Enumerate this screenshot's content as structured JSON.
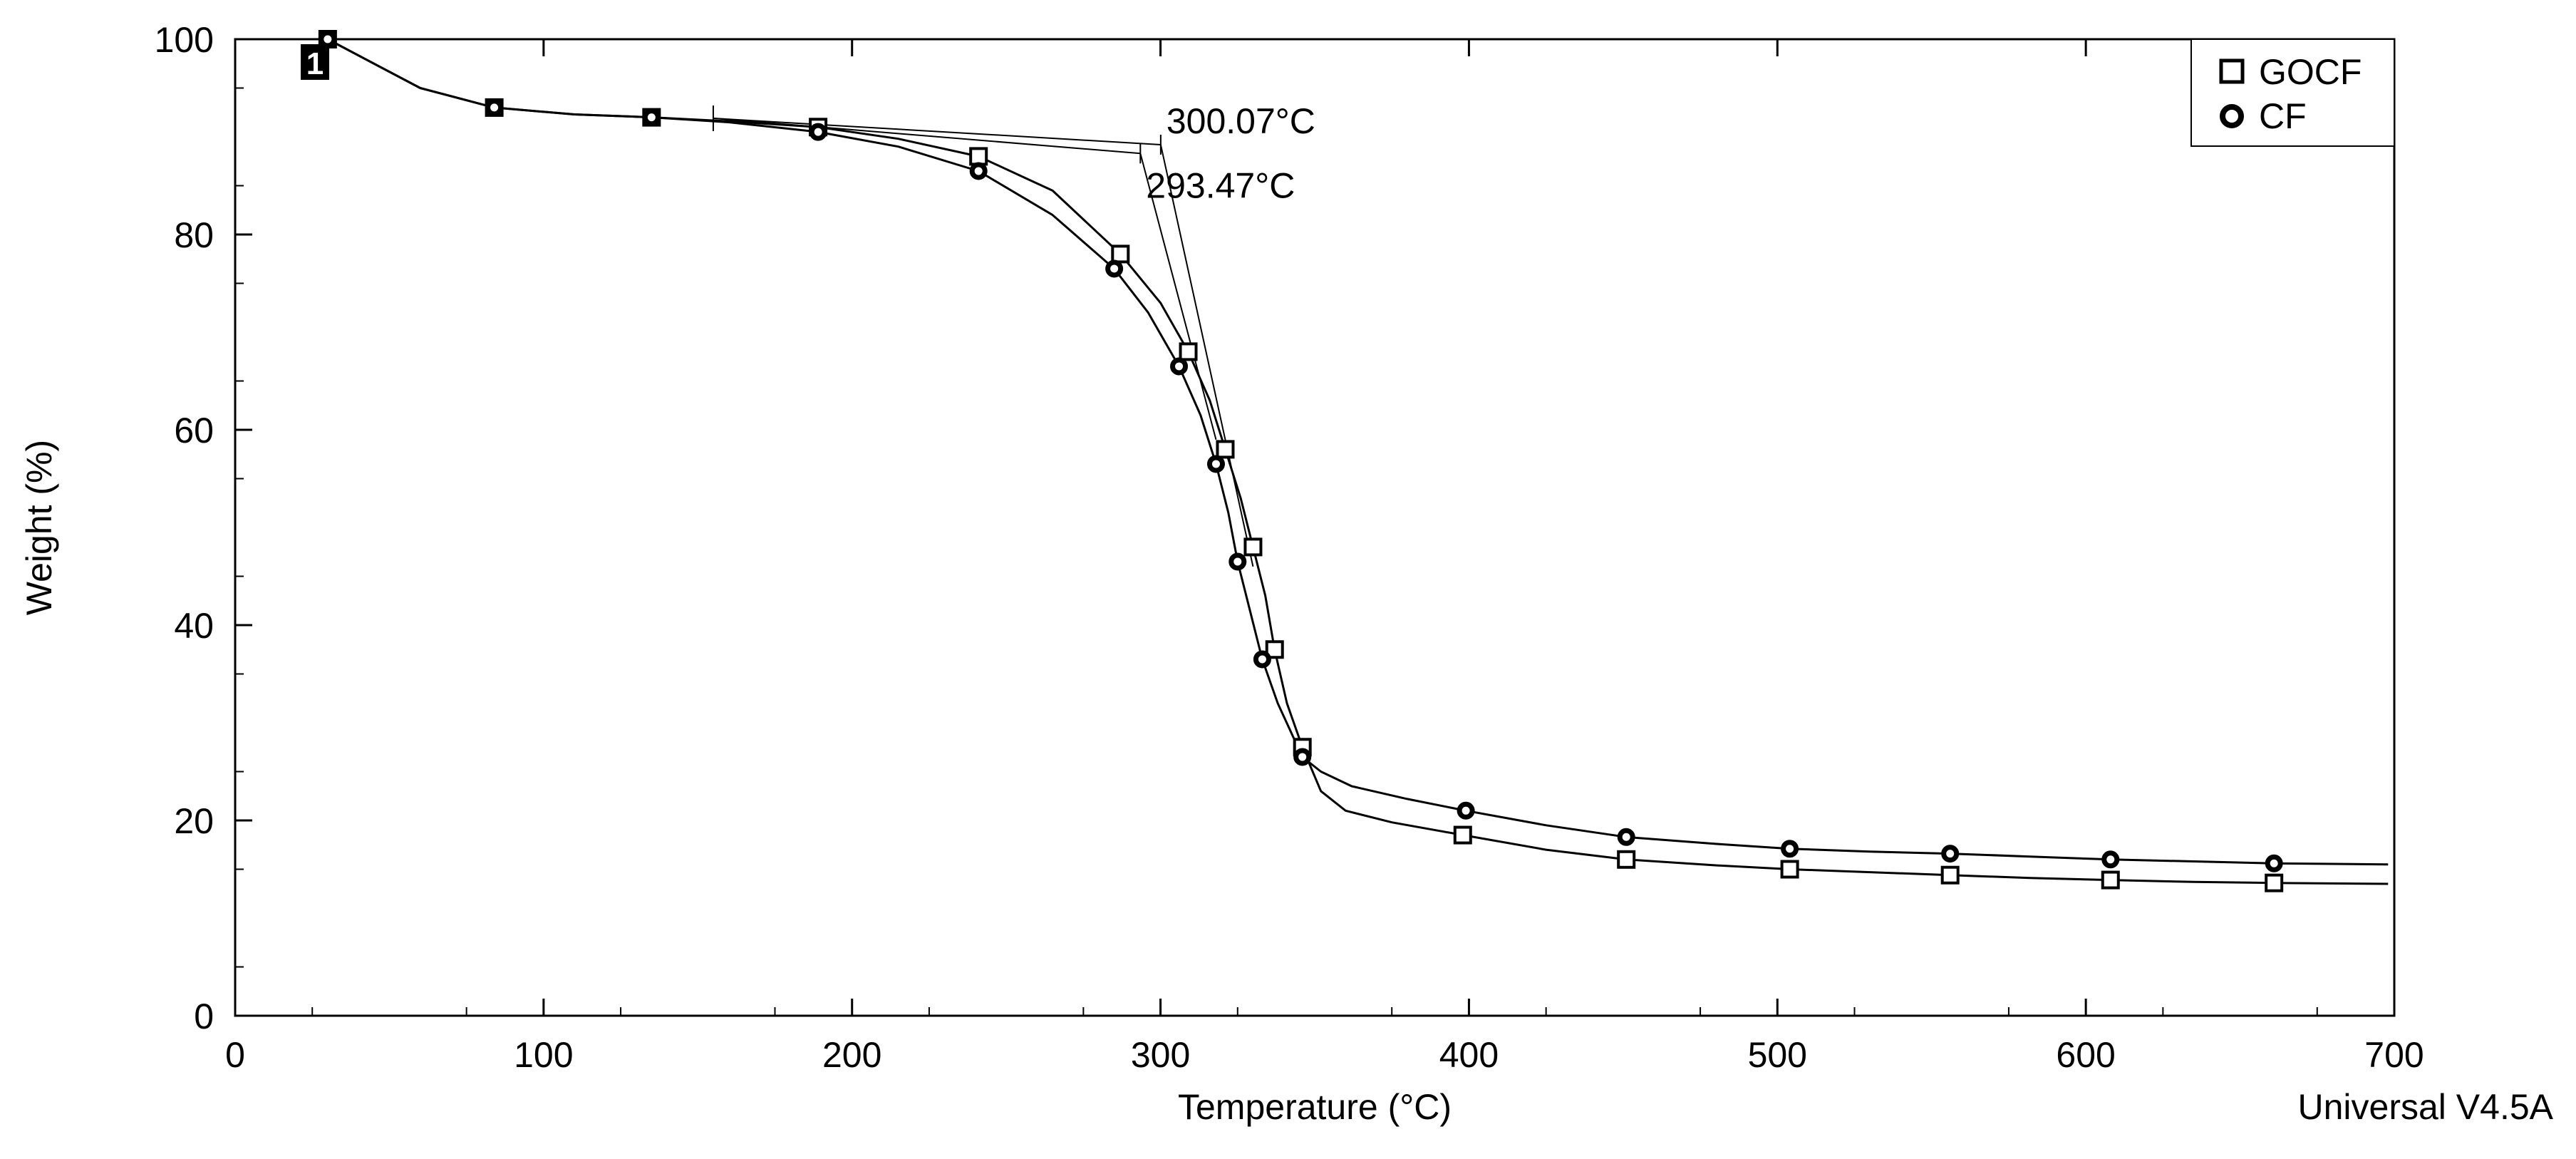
{
  "chart_data": {
    "type": "line",
    "title": "",
    "xlabel": "Temperature (°C)",
    "ylabel": "Weight (%)",
    "xlim": [
      0,
      700
    ],
    "ylim": [
      0,
      100
    ],
    "xticks": [
      0,
      100,
      200,
      300,
      400,
      500,
      600,
      700
    ],
    "yticks": [
      0,
      20,
      40,
      60,
      80,
      100
    ],
    "grid": false,
    "legend_position": "top-right",
    "series": [
      {
        "name": "GOCF",
        "marker": "square",
        "x": [
          30,
          60,
          84,
          110,
          135,
          160,
          189,
          215,
          241,
          265,
          287,
          300,
          309,
          316,
          321,
          326,
          330,
          334,
          337,
          341,
          346,
          352,
          360,
          375,
          398,
          425,
          451,
          480,
          504,
          530,
          556,
          582,
          608,
          635,
          661,
          698
        ],
        "y": [
          100,
          95,
          93,
          92.3,
          92,
          91.6,
          91,
          89.8,
          88,
          84.5,
          78,
          73,
          68,
          63,
          58,
          53,
          48,
          43,
          37.5,
          32,
          27.5,
          23,
          21,
          19.8,
          18.5,
          17,
          16,
          15.4,
          15,
          14.7,
          14.4,
          14.1,
          13.9,
          13.7,
          13.6,
          13.5
        ],
        "marker_x": [
          30,
          84,
          135,
          189,
          241,
          287,
          309,
          321,
          330,
          337,
          346,
          398,
          451,
          504,
          556,
          608,
          661
        ]
      },
      {
        "name": "CF",
        "marker": "circle",
        "x": [
          30,
          60,
          84,
          110,
          135,
          160,
          189,
          215,
          241,
          265,
          285,
          296,
          306,
          313,
          318,
          322,
          325,
          329,
          333,
          338,
          346,
          352,
          362,
          380,
          399,
          425,
          451,
          480,
          504,
          530,
          556,
          582,
          608,
          635,
          661,
          698
        ],
        "y": [
          100,
          95,
          93,
          92.3,
          92,
          91.5,
          90.5,
          89,
          86.5,
          82,
          76.5,
          72,
          66.5,
          61.5,
          56.5,
          51.5,
          46.5,
          41.5,
          36.5,
          32,
          26.5,
          25,
          23.5,
          22.2,
          21,
          19.5,
          18.3,
          17.6,
          17.1,
          16.8,
          16.6,
          16.3,
          16,
          15.8,
          15.6,
          15.5
        ],
        "marker_x": [
          30,
          84,
          135,
          189,
          241,
          285,
          306,
          318,
          325,
          333,
          346,
          399,
          451,
          504,
          556,
          608,
          661
        ]
      }
    ],
    "onset_annotations": [
      {
        "label": "300.07°C",
        "onset_x": 300.07,
        "baseline": {
          "x": [
            155,
            300.07
          ],
          "y": [
            91.9,
            89.2
          ]
        },
        "tangent": {
          "x": [
            300.07,
            330
          ],
          "y": [
            89.2,
            46
          ]
        }
      },
      {
        "label": "293.47°C",
        "onset_x": 293.47,
        "baseline": {
          "x": [
            155,
            293.47
          ],
          "y": [
            91.9,
            88.3
          ]
        },
        "tangent": {
          "x": [
            293.47,
            318
          ],
          "y": [
            88.3,
            59
          ]
        }
      }
    ],
    "step_marker_label": "1",
    "footer": "Universal V4.5A"
  }
}
